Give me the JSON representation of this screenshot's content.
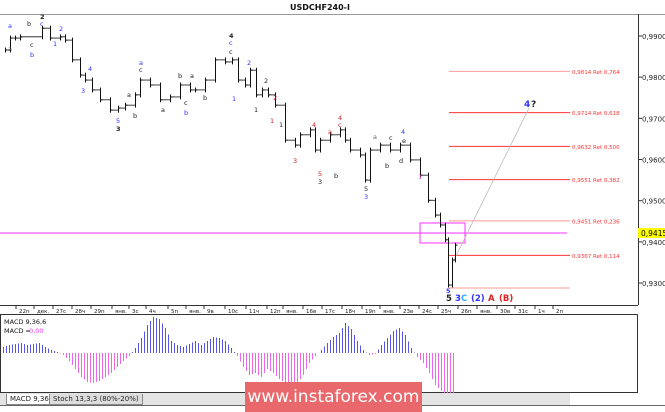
{
  "chart_data": {
    "type": "bar",
    "title": "USDCHF240-I",
    "y_ticks": [
      "0,9900",
      "0,9800",
      "0,9700",
      "0,9600",
      "0,9500",
      "0,9400",
      "0,9300"
    ],
    "y_tick_values": [
      0.99,
      0.98,
      0.97,
      0.96,
      0.95,
      0.94,
      0.93
    ],
    "ylim": [
      0.927,
      0.9955
    ],
    "x_ticks": [
      "22п",
      "дек.",
      "27с",
      "28ч",
      "29п",
      "янв.",
      "3с",
      "4ч",
      "5п",
      "янв.",
      "9в",
      "10с",
      "11ч",
      "12п",
      "янв.",
      "16в",
      "17с",
      "18ч",
      "19п",
      "янв.",
      "23в",
      "24с",
      "25ч",
      "26п",
      "янв.",
      "30в",
      "31с",
      "1ч",
      "2п"
    ],
    "closes": [
      0.9866,
      0.9895,
      0.9895,
      0.9898,
      0.9919,
      0.9895,
      0.9898,
      0.989,
      0.9842,
      0.9805,
      0.9793,
      0.9769,
      0.9745,
      0.972,
      0.9725,
      0.9732,
      0.9757,
      0.9793,
      0.9781,
      0.9745,
      0.9752,
      0.9781,
      0.9769,
      0.9769,
      0.9793,
      0.9842,
      0.9837,
      0.9842,
      0.9793,
      0.9781,
      0.9817,
      0.9757,
      0.9769,
      0.9757,
      0.9732,
      0.9647,
      0.9635,
      0.966,
      0.9672,
      0.9623,
      0.9647,
      0.966,
      0.9672,
      0.9647,
      0.9623,
      0.9611,
      0.955,
      0.9623,
      0.9635,
      0.9623,
      0.9635,
      0.9599,
      0.9562,
      0.9501,
      0.9465,
      0.9441,
      0.9405,
      0.9295,
      0.9356,
      0.9392
    ],
    "current_price": {
      "label": "0,9415",
      "value": 0.9415,
      "color": "#ffff00"
    },
    "fib_levels": [
      {
        "value": 0.9814,
        "label": "0,9814 Ret 0,764"
      },
      {
        "value": 0.9714,
        "label": "0,9714 Ret 0,618"
      },
      {
        "value": 0.9632,
        "label": "0,9632 Ret 0,500"
      },
      {
        "value": 0.9551,
        "label": "0,9551 Ret 0,382"
      },
      {
        "value": 0.9451,
        "label": "0,9451 Ret 0,236"
      },
      {
        "value": 0.9367,
        "label": "0,9367 Ret 0,114"
      },
      {
        "value": 0.9288,
        "label": ""
      }
    ],
    "annotations": [
      {
        "text": "a",
        "color": "#3333ff"
      },
      {
        "text": "a",
        "color": "#666666"
      },
      {
        "text": "b",
        "color": "#222222"
      },
      {
        "text": "c",
        "color": "#222222"
      },
      {
        "text": "b",
        "color": "#3333ff"
      },
      {
        "text": "2",
        "color": "#222222"
      },
      {
        "text": "c",
        "color": "#3333ff"
      },
      {
        "text": "2",
        "color": "#3333ff"
      },
      {
        "text": "1",
        "color": "#3333ff"
      },
      {
        "text": "4",
        "color": "#3333ff"
      },
      {
        "text": "3",
        "color": "#3333ff"
      },
      {
        "text": "a",
        "color": "#3333ff"
      },
      {
        "text": "c",
        "color": "#222222"
      },
      {
        "text": "a",
        "color": "#222222"
      },
      {
        "text": "b",
        "color": "#222222"
      },
      {
        "text": "5",
        "color": "#3333ff"
      },
      {
        "text": "3",
        "color": "#222222"
      },
      {
        "text": "a",
        "color": "#222222"
      },
      {
        "text": "b",
        "color": "#222222"
      },
      {
        "text": "c",
        "color": "#222222"
      },
      {
        "text": "b",
        "color": "#3333ff"
      },
      {
        "text": "a",
        "color": "#222222"
      },
      {
        "text": "b",
        "color": "#222222"
      },
      {
        "text": "4",
        "color": "#222222"
      },
      {
        "text": "c",
        "color": "#3333ff"
      },
      {
        "text": "c",
        "color": "#222222"
      },
      {
        "text": "2",
        "color": "#3333ff"
      },
      {
        "text": "1",
        "color": "#3333ff"
      },
      {
        "text": "2",
        "color": "#222222"
      },
      {
        "text": "1",
        "color": "#222222"
      },
      {
        "text": "2",
        "color": "#cc2222"
      },
      {
        "text": "1",
        "color": "#cc2222"
      },
      {
        "text": "1",
        "color": "#222222"
      },
      {
        "text": "4",
        "color": "#cc2222"
      },
      {
        "text": "3",
        "color": "#cc2222"
      },
      {
        "text": "4",
        "color": "#cc2222"
      },
      {
        "text": "c",
        "color": "#cc2222"
      },
      {
        "text": "a",
        "color": "#cc2222"
      },
      {
        "text": "5",
        "color": "#cc2222"
      },
      {
        "text": "3",
        "color": "#222222"
      },
      {
        "text": "b",
        "color": "#222222"
      },
      {
        "text": "a",
        "color": "#666666"
      },
      {
        "text": "c",
        "color": "#222222"
      },
      {
        "text": "b",
        "color": "#222222"
      },
      {
        "text": "4",
        "color": "#3333ff"
      },
      {
        "text": "e",
        "color": "#222222"
      },
      {
        "text": "d",
        "color": "#222222"
      },
      {
        "text": "5",
        "color": "#222222"
      },
      {
        "text": "3",
        "color": "#3333ff"
      },
      {
        "text": "1",
        "color": "#ff44ff"
      },
      {
        "text": "5",
        "color": "#3333ff"
      },
      {
        "text": "5",
        "color": "#222222"
      },
      {
        "text": "3",
        "color": "#3333ff"
      },
      {
        "text": "C",
        "color": "#33aaff"
      },
      {
        "text": "(2)",
        "color": "#3333ff"
      },
      {
        "text": "A",
        "color": "#dd2222"
      },
      {
        "text": "(B)",
        "color": "#dd2222"
      },
      {
        "text": "4",
        "color": "#3333ff"
      },
      {
        "text": "?",
        "color": "#222222"
      }
    ],
    "macd": {
      "label": "MACD 9,36,6",
      "value_prefix": "MACD =",
      "value": "0,00",
      "positive_color": "#5555ee",
      "negative_color": "#ee66ee",
      "values": [
        6,
        8,
        9,
        10,
        8,
        9,
        10,
        6,
        3,
        1,
        -2,
        -8,
        -16,
        -24,
        -29,
        -30,
        -28,
        -24,
        -20,
        -14,
        -8,
        -3,
        5,
        15,
        28,
        36,
        34,
        25,
        12,
        8,
        6,
        9,
        12,
        8,
        12,
        16,
        15,
        12,
        5,
        -3,
        -14,
        -22,
        -20,
        -24,
        -16,
        -20,
        -26,
        -30,
        -32,
        -30,
        -22,
        -10,
        -3,
        3,
        10,
        16,
        20,
        30,
        24,
        12,
        3,
        -2,
        -1,
        8,
        15,
        22,
        25,
        18,
        5,
        -4,
        -10,
        -20,
        -32,
        -38,
        -42,
        -43
      ]
    }
  },
  "tabs": [
    {
      "label": "MACD 9,36,6"
    },
    {
      "label": "Stoch 13,3,3 (80%-20%)"
    }
  ],
  "watermark": "www.instaforex.com"
}
